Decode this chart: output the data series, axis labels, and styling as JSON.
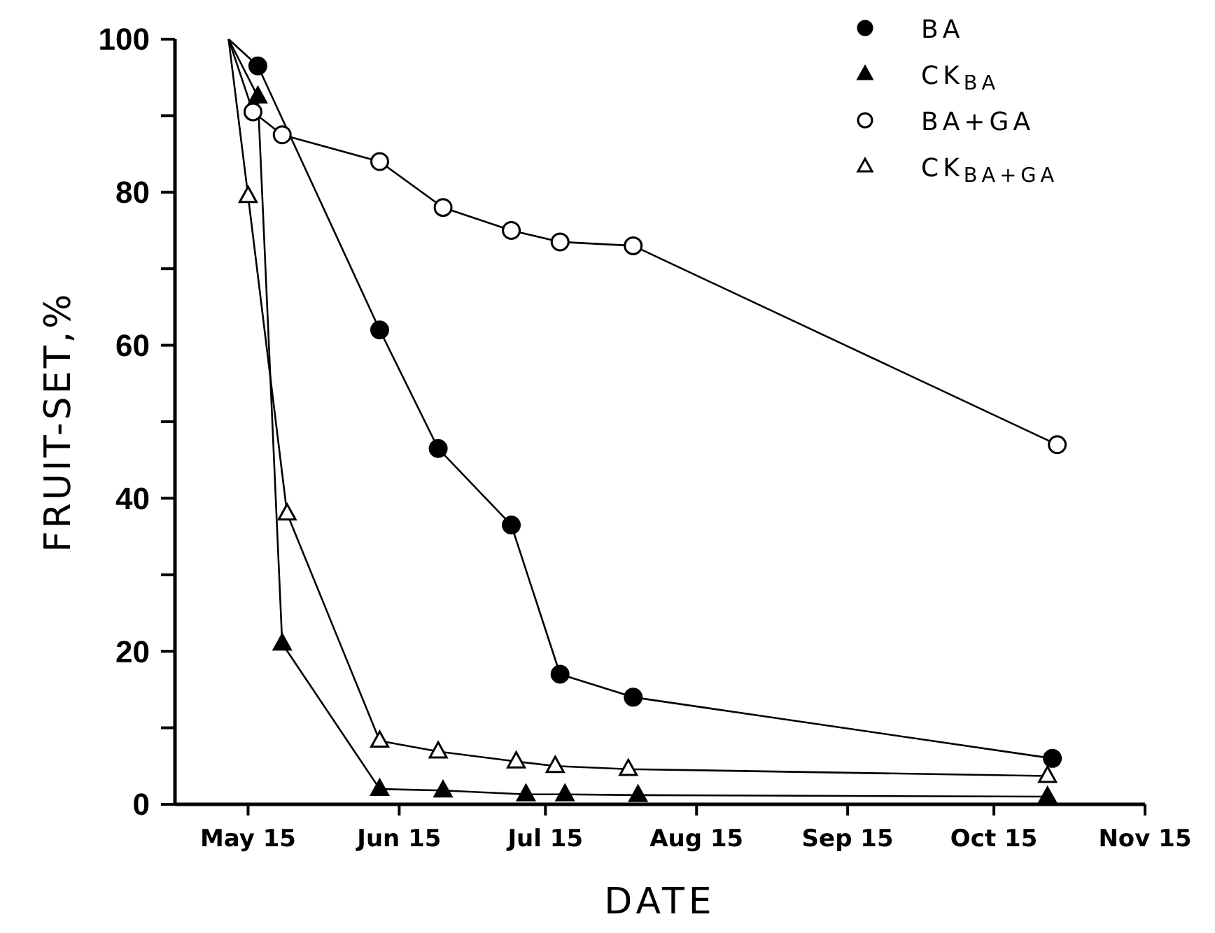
{
  "chart_data": {
    "type": "line",
    "xlabel": "DATE",
    "ylabel": "FRUIT-SET,%",
    "xlim": [
      "--04-30",
      "--11-15"
    ],
    "xticks": [
      {
        "value": "--05-15",
        "label": "May 15"
      },
      {
        "value": "--06-15",
        "label": "Jun 15"
      },
      {
        "value": "--07-15",
        "label": "Jul 15"
      },
      {
        "value": "--08-15",
        "label": "Aug 15"
      },
      {
        "value": "--09-15",
        "label": "Sep 15"
      },
      {
        "value": "--10-15",
        "label": "Oct 15"
      },
      {
        "value": "--11-15",
        "label": "Nov 15"
      }
    ],
    "ylim": [
      0,
      100
    ],
    "yticks": [
      0,
      {
        "value": 10,
        "label": null
      },
      20,
      {
        "value": 30,
        "label": null
      },
      40,
      {
        "value": 50,
        "label": null
      },
      60,
      {
        "value": 70,
        "label": null
      },
      80,
      {
        "value": 90,
        "label": null
      },
      100
    ],
    "grid": false,
    "legend": "top right",
    "series": [
      {
        "name": "BA",
        "color": "#000000",
        "marker": "circle",
        "x": [
          "--05-11",
          "--05-17",
          "--06-11",
          "--06-23",
          "--07-08",
          "--07-18",
          "--08-02",
          "--10-27"
        ],
        "values": [
          100,
          96.5,
          62,
          46.5,
          36.5,
          17,
          14,
          6
        ]
      },
      {
        "name": "CK$_{BA}$",
        "color": "#000000",
        "marker": "triangle",
        "x": [
          "--05-11",
          "--05-17",
          "--05-22",
          "--06-11",
          "--06-24",
          "--07-11",
          "--07-19",
          "--08-03",
          "--10-26"
        ],
        "values": [
          100,
          92.5,
          21,
          2,
          1.8,
          1.3,
          1.3,
          1.2,
          1
        ]
      },
      {
        "name": "BA+GA",
        "color": "#000000",
        "marker": "circle",
        "x": [
          "--05-11",
          "--05-16",
          "--05-22",
          "--06-11",
          "--06-24",
          "--07-08",
          "--07-18",
          "--08-02",
          "--10-28"
        ],
        "values": [
          100,
          90.5,
          87.5,
          84,
          78,
          75,
          73.5,
          73,
          47
        ]
      },
      {
        "name": "CK$_{BA+GA}$",
        "color": "#000000",
        "marker": "triangle",
        "x": [
          "--05-11",
          "--05-15",
          "--05-23",
          "--06-11",
          "--06-23",
          "--07-09",
          "--07-17",
          "--08-01",
          "--10-26"
        ],
        "values": [
          100,
          79.5,
          38,
          8.3,
          6.9,
          5.6,
          5,
          4.6,
          3.7
        ]
      }
    ]
  }
}
